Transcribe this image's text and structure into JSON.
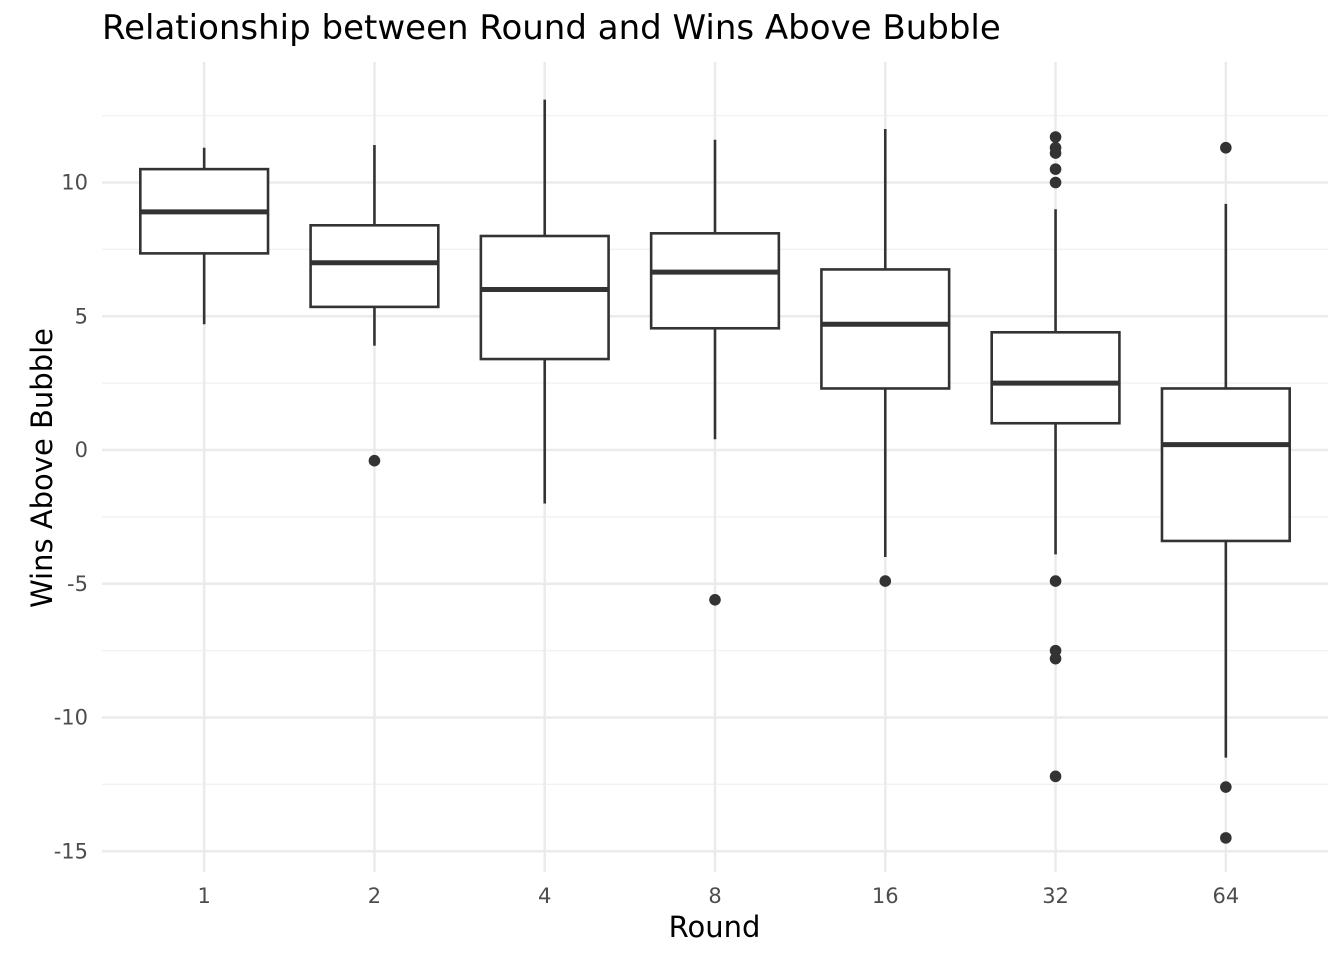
{
  "chart_data": {
    "type": "box",
    "title": "Relationship between Round and Wins Above Bubble",
    "xlabel": "Round",
    "ylabel": "Wins Above Bubble",
    "ylim": [
      -16,
      14.4
    ],
    "y_ticks": [
      10,
      5,
      0,
      -5,
      -10,
      -15
    ],
    "y_tick_labels": [
      "10",
      "5",
      "0",
      "-5",
      "-10",
      "-15"
    ],
    "categories": [
      "1",
      "2",
      "4",
      "8",
      "16",
      "32",
      "64"
    ],
    "boxes": [
      {
        "category": "1",
        "whisker_low": 4.7,
        "q1": 7.35,
        "median": 8.9,
        "q3": 10.5,
        "whisker_high": 11.3,
        "outliers": []
      },
      {
        "category": "2",
        "whisker_low": 3.9,
        "q1": 5.35,
        "median": 7.0,
        "q3": 8.4,
        "whisker_high": 11.4,
        "outliers": [
          -0.4
        ]
      },
      {
        "category": "4",
        "whisker_low": -2.0,
        "q1": 3.4,
        "median": 6.0,
        "q3": 8.0,
        "whisker_high": 13.1,
        "outliers": []
      },
      {
        "category": "8",
        "whisker_low": 0.4,
        "q1": 4.55,
        "median": 6.65,
        "q3": 8.1,
        "whisker_high": 11.6,
        "outliers": [
          -5.6
        ]
      },
      {
        "category": "16",
        "whisker_low": -4.0,
        "q1": 2.3,
        "median": 4.7,
        "q3": 6.75,
        "whisker_high": 12.0,
        "outliers": [
          -4.9
        ]
      },
      {
        "category": "32",
        "whisker_low": -3.9,
        "q1": 1.0,
        "median": 2.5,
        "q3": 4.4,
        "whisker_high": 9.0,
        "outliers": [
          11.7,
          11.3,
          11.1,
          10.5,
          10.0,
          -4.9,
          -7.5,
          -7.8,
          -12.2
        ]
      },
      {
        "category": "64",
        "whisker_low": -11.5,
        "q1": -3.4,
        "median": 0.2,
        "q3": 2.3,
        "whisker_high": 9.2,
        "outliers": [
          11.3,
          -12.6,
          -14.5
        ]
      }
    ],
    "grid": true,
    "legend": "none"
  },
  "colors": {
    "box_line": "#333333",
    "outlier": "#333333",
    "major_grid": "#ebebeb",
    "minor_grid": "#f2f2f2",
    "tick_text": "#4d4d4d"
  }
}
